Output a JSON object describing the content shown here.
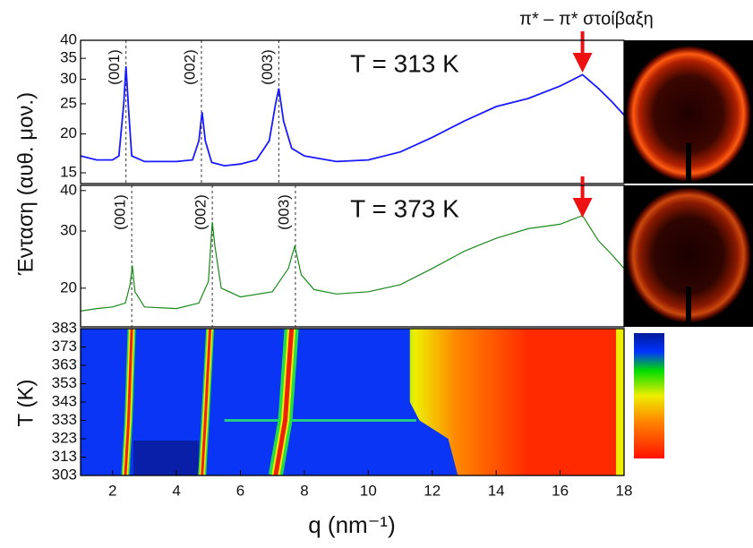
{
  "chart_data": [
    {
      "type": "line",
      "title": "T = 313 K",
      "title_color": "#1a1aff",
      "ylabel": "Ένταση (αυθ. μον.)",
      "log_y": true,
      "annotation": {
        "text": "π* – π* στοίβαξη",
        "q": 16.7
      },
      "xlim": [
        1,
        18
      ],
      "ylim": [
        13.85,
        40
      ],
      "yticks": [
        15,
        20,
        25,
        30,
        35,
        40
      ],
      "peaks": [
        {
          "q": 2.42,
          "label": "(001)"
        },
        {
          "q": 4.78,
          "label": "(002)"
        },
        {
          "q": 7.2,
          "label": "(003)"
        }
      ],
      "series": [
        {
          "color": "#1a1aff",
          "x": [
            1,
            1.5,
            2,
            2.2,
            2.35,
            2.42,
            2.5,
            2.6,
            3,
            3.5,
            4,
            4.5,
            4.7,
            4.8,
            4.9,
            5.1,
            5.5,
            6,
            6.5,
            6.9,
            7.1,
            7.2,
            7.35,
            7.6,
            8,
            9,
            10,
            11,
            12,
            13,
            14,
            15,
            16,
            16.7,
            17.2,
            17.6,
            18
          ],
          "values": [
            17,
            16.5,
            16.5,
            17,
            25,
            33,
            24,
            17,
            16.3,
            16.3,
            16.3,
            16.5,
            19,
            23.5,
            19,
            16.2,
            15.8,
            16,
            16.5,
            19,
            25,
            28,
            22,
            18,
            17,
            16.3,
            16.5,
            17.5,
            19.5,
            22,
            24.5,
            26,
            28.5,
            31,
            28,
            25.5,
            23
          ]
        }
      ]
    },
    {
      "type": "line",
      "title": "T = 373 K",
      "title_color": "#1a8a1a",
      "log_y": true,
      "annotation": {
        "q": 16.7
      },
      "xlim": [
        1,
        18
      ],
      "ylim": [
        15.2,
        41.5
      ],
      "yticks": [
        20,
        30,
        40
      ],
      "peaks": [
        {
          "q": 2.6,
          "label": "(001)"
        },
        {
          "q": 5.12,
          "label": "(002)"
        },
        {
          "q": 7.72,
          "label": "(003)"
        }
      ],
      "series": [
        {
          "color": "#1a8a1a",
          "x": [
            1,
            1.5,
            2,
            2.4,
            2.55,
            2.62,
            2.7,
            3,
            4,
            4.7,
            5,
            5.12,
            5.2,
            5.4,
            6,
            7,
            7.5,
            7.7,
            7.9,
            8.3,
            9,
            10,
            11,
            12,
            13,
            14,
            15,
            16,
            16.7,
            17.2,
            17.6,
            18
          ],
          "values": [
            17,
            17.3,
            17.5,
            18,
            20.5,
            23.5,
            19.5,
            17.5,
            17.3,
            18,
            21,
            32,
            27,
            20,
            18.8,
            19.5,
            23,
            27,
            22,
            19.8,
            19.2,
            19.5,
            20.5,
            23,
            26,
            28.5,
            30.5,
            31.5,
            33.5,
            28,
            25.5,
            23
          ]
        }
      ]
    },
    {
      "type": "heatmap",
      "xlabel": "q (nm⁻¹)",
      "ylabel": "T (K)",
      "xlim": [
        1,
        18
      ],
      "ylim": [
        303,
        383
      ],
      "xticks": [
        2,
        4,
        6,
        8,
        10,
        12,
        14,
        16,
        18
      ],
      "yticks": [
        303,
        313,
        323,
        333,
        343,
        353,
        363,
        373,
        383
      ],
      "ridges": [
        {
          "T": [
            303,
            333,
            383
          ],
          "q": [
            2.4,
            2.5,
            2.6
          ]
        },
        {
          "T": [
            303,
            333,
            383
          ],
          "q": [
            4.8,
            4.9,
            5.05
          ]
        },
        {
          "T": [
            303,
            333,
            383
          ],
          "q": [
            7.1,
            7.4,
            7.6
          ]
        }
      ],
      "edge": {
        "T": [
          303,
          323,
          333,
          343,
          383
        ],
        "q": [
          12.8,
          12.5,
          11.6,
          11.3,
          11.3
        ]
      }
    }
  ]
}
